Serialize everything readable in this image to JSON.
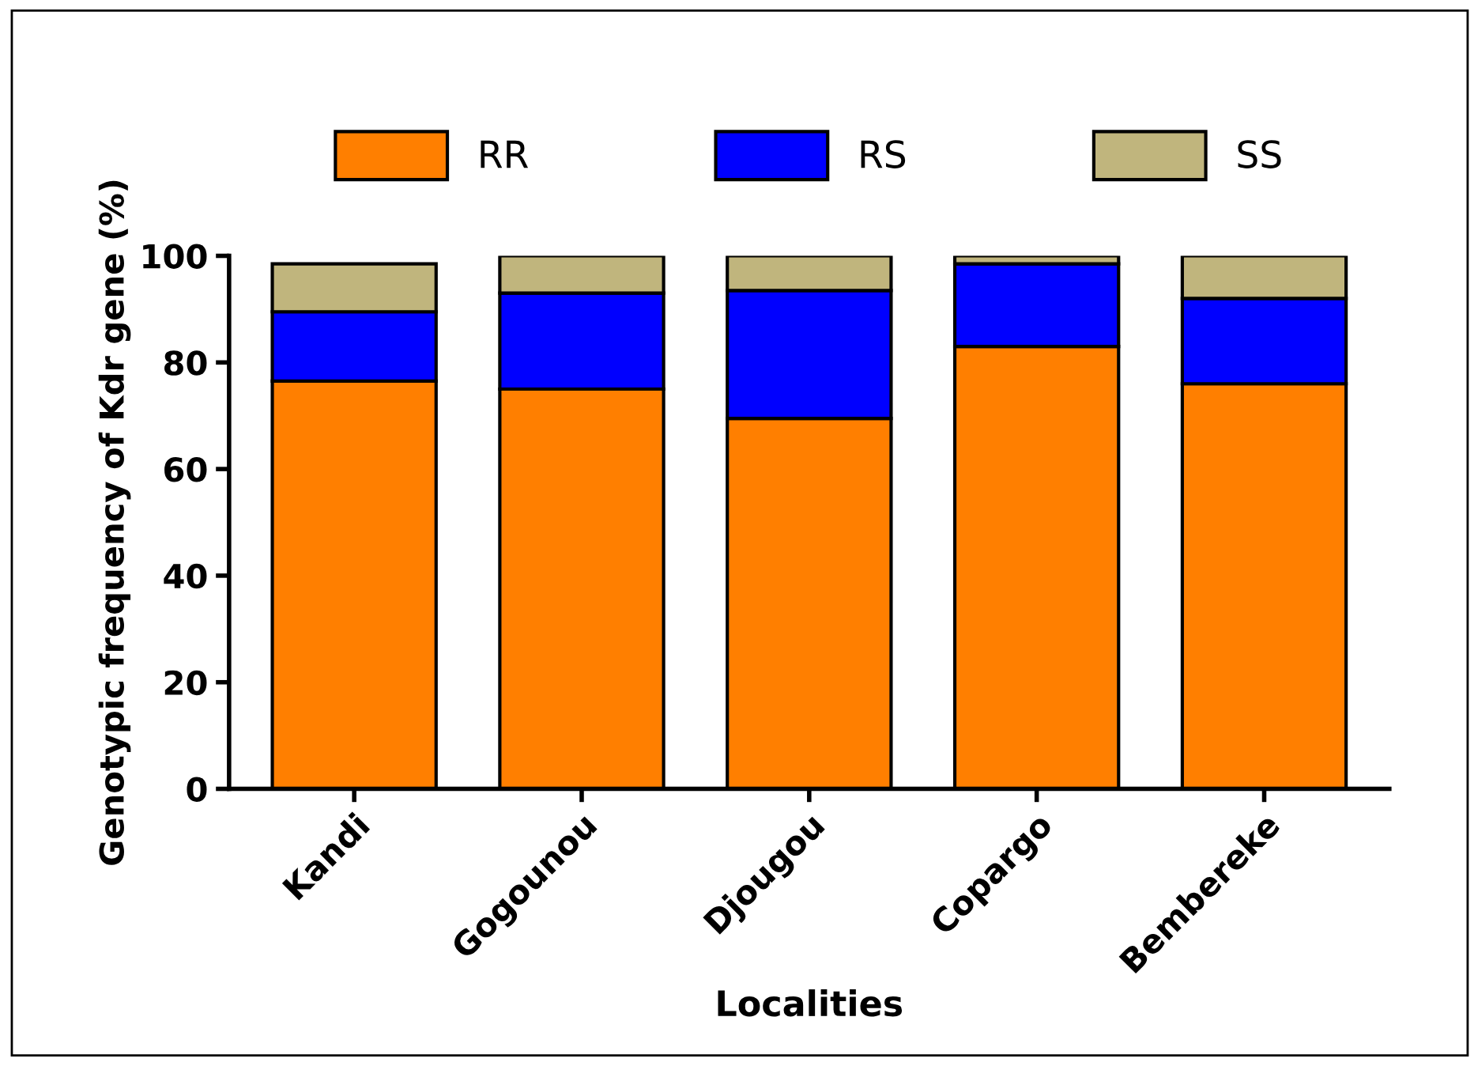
{
  "chart_data": {
    "type": "bar",
    "stacked": true,
    "xlabel": "Localities",
    "ylabel": "Genotypic frequency of Kdr gene (%)",
    "categories": [
      "Kandi",
      "Gogounou",
      "Djougou",
      "Copargo",
      "Bembereke"
    ],
    "series": [
      {
        "name": "RR",
        "color": "#ff7f00",
        "values": [
          76.5,
          75,
          69.5,
          83,
          76
        ]
      },
      {
        "name": "RS",
        "color": "#0000ff",
        "values": [
          13,
          18,
          24,
          15.5,
          16
        ]
      },
      {
        "name": "SS",
        "color": "#c0b57d",
        "values": [
          9,
          7,
          6.5,
          1.5,
          8
        ]
      }
    ],
    "ylim": [
      0,
      100
    ],
    "yticks": [
      0,
      20,
      40,
      60,
      80,
      100
    ],
    "grid": false,
    "legend": "top"
  }
}
